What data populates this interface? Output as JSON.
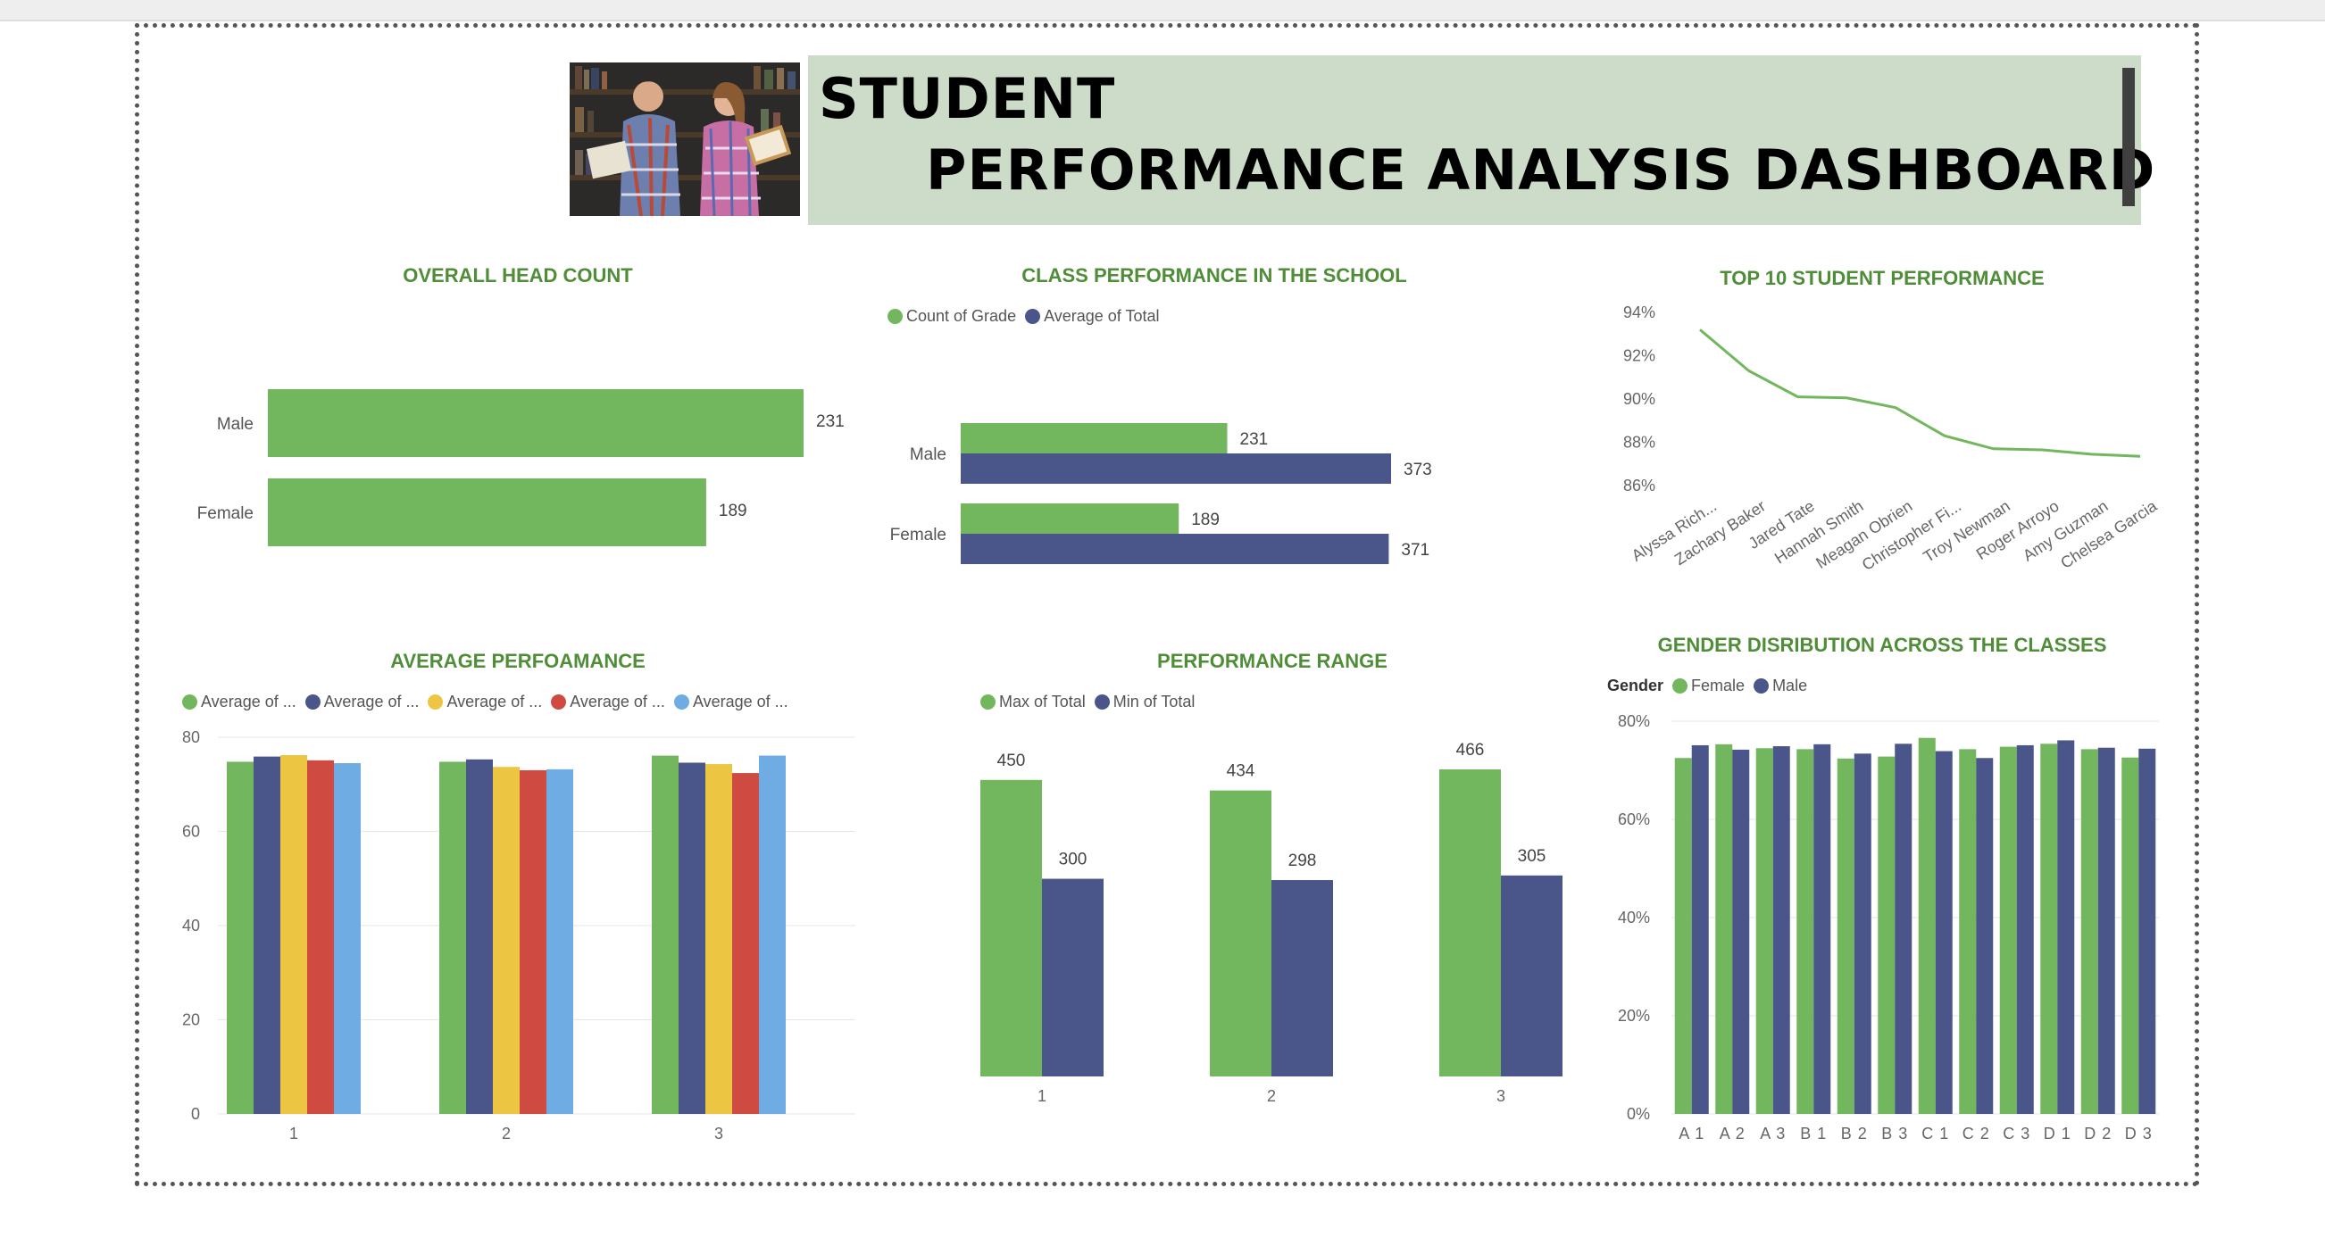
{
  "colors": {
    "green": "#72b75e",
    "navy": "#4a5589",
    "yellow": "#ecc642",
    "red": "#cf4a41",
    "blue": "#6eace3",
    "title_green": "#4f8d38"
  },
  "header": {
    "line1": "STUDENT",
    "line2": "PERFORMANCE  ANALYSIS  DASHBOARD",
    "photo_icon": "students-reading-photo"
  },
  "chart_data": [
    {
      "id": "head_count",
      "type": "bar",
      "orientation": "horizontal",
      "title": "OVERALL HEAD COUNT",
      "categories": [
        "Male",
        "Female"
      ],
      "values": [
        231,
        189
      ],
      "xlim": [
        0,
        231
      ]
    },
    {
      "id": "class_performance",
      "type": "bar",
      "orientation": "horizontal",
      "title": "CLASS PERFORMANCE IN THE SCHOOL",
      "categories": [
        "Male",
        "Female"
      ],
      "series": [
        {
          "name": "Count of Grade",
          "values": [
            231,
            189
          ]
        },
        {
          "name": "Average of Total",
          "values": [
            373,
            371
          ]
        }
      ],
      "xlim": [
        0,
        373
      ],
      "legend": "top-left"
    },
    {
      "id": "top10",
      "type": "line",
      "title": "TOP 10 STUDENT PERFORMANCE",
      "categories": [
        "Alyssa Rich...",
        "Zachary Baker",
        "Jared Tate",
        "Hannah Smith",
        "Meagan Obrien",
        "Christopher Fi...",
        "Troy Newman",
        "Roger Arroyo",
        "Amy Guzman",
        "Chelsea Garcia"
      ],
      "values": [
        93.2,
        91.3,
        90.1,
        90.05,
        89.6,
        88.3,
        87.7,
        87.65,
        87.45,
        87.35
      ],
      "yticks": [
        "86%",
        "88%",
        "90%",
        "92%",
        "94%"
      ],
      "ylim": [
        86,
        94
      ]
    },
    {
      "id": "avg_performance",
      "type": "bar",
      "title": "AVERAGE PERFOAMANCE",
      "categories": [
        "1",
        "2",
        "3"
      ],
      "series": [
        {
          "name": "Average of ...",
          "values": [
            74.8,
            74.8,
            76.1
          ]
        },
        {
          "name": "Average of ...",
          "values": [
            75.9,
            75.3,
            74.6
          ]
        },
        {
          "name": "Average of ...",
          "values": [
            76.2,
            73.7,
            74.3
          ]
        },
        {
          "name": "Average of ...",
          "values": [
            75.1,
            73.0,
            72.4
          ]
        },
        {
          "name": "Average of ...",
          "values": [
            74.5,
            73.2,
            76.1
          ]
        }
      ],
      "yticks": [
        "0",
        "20",
        "40",
        "60",
        "80"
      ],
      "ylim": [
        0,
        80
      ],
      "legend": "top-left"
    },
    {
      "id": "performance_range",
      "type": "bar",
      "title": "PERFORMANCE RANGE",
      "categories": [
        "1",
        "2",
        "3"
      ],
      "series": [
        {
          "name": "Max of Total",
          "values": [
            450,
            434,
            466
          ]
        },
        {
          "name": "Min of Total",
          "values": [
            300,
            298,
            305
          ]
        }
      ],
      "ylim": [
        0,
        466
      ],
      "legend": "top-left"
    },
    {
      "id": "gender_distribution",
      "type": "bar",
      "title": "GENDER DISRIBUTION ACROSS THE CLASSES",
      "legend_title": "Gender",
      "categories": [
        "A 1",
        "A 2",
        "A 3",
        "B 1",
        "B 2",
        "B 3",
        "C 1",
        "C 2",
        "C 3",
        "D 1",
        "D 2",
        "D 3"
      ],
      "series": [
        {
          "name": "Female",
          "values": [
            72.5,
            75.3,
            74.5,
            74.3,
            72.4,
            72.8,
            76.6,
            74.3,
            74.8,
            75.4,
            74.3,
            72.6
          ]
        },
        {
          "name": "Male",
          "values": [
            75.1,
            74.2,
            74.9,
            75.3,
            73.4,
            75.4,
            73.9,
            72.5,
            75.1,
            76.1,
            74.6,
            74.4
          ]
        }
      ],
      "yticks": [
        "0%",
        "20%",
        "40%",
        "60%",
        "80%"
      ],
      "ylim": [
        0,
        80
      ],
      "legend": "top-left"
    }
  ]
}
